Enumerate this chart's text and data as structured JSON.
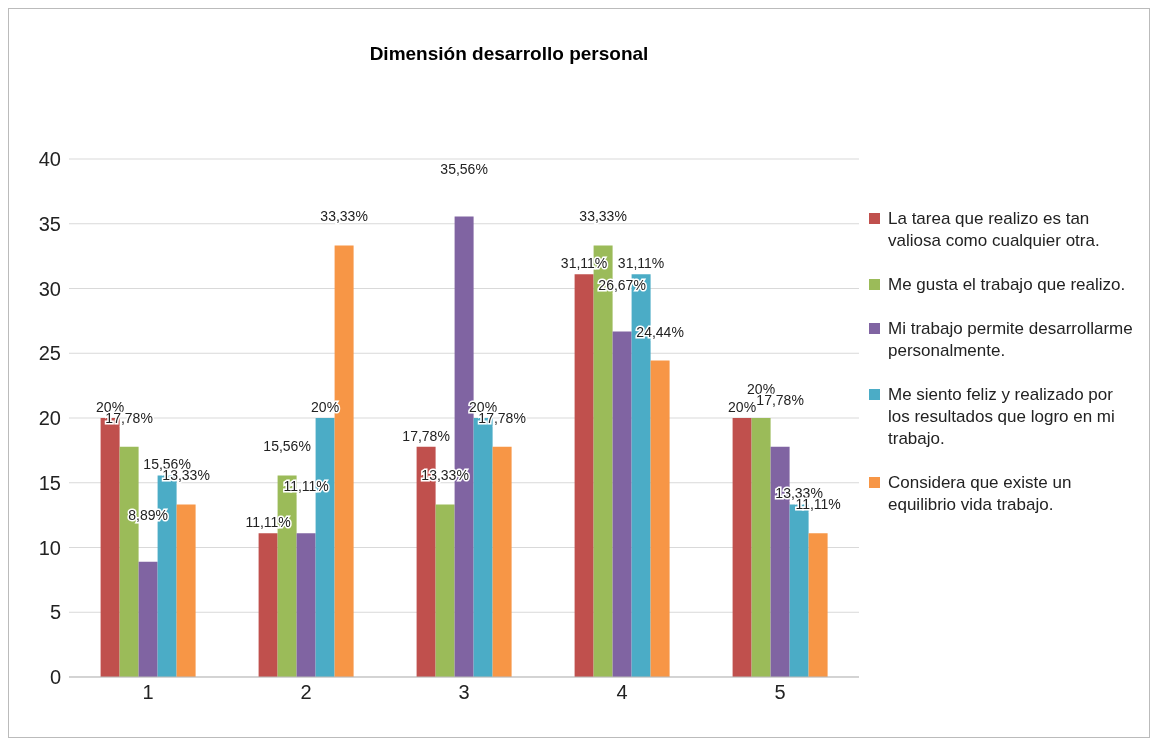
{
  "chart_data": {
    "type": "bar",
    "title": "Dimensión desarrollo personal",
    "categories": [
      "1",
      "2",
      "3",
      "4",
      "5"
    ],
    "series": [
      {
        "name": "La tarea que realizo es tan valiosa como cualquier otra.",
        "color": "#c0504d",
        "values": [
          20,
          11.11,
          17.78,
          31.11,
          20
        ],
        "value_labels": [
          "20%",
          "11,11%",
          "17,78%",
          "31,11%",
          "20%"
        ]
      },
      {
        "name": "Me gusta el trabajo que realizo.",
        "color": "#9bbb59",
        "values": [
          17.78,
          15.56,
          13.33,
          33.33,
          20
        ],
        "value_labels": [
          "17,78%",
          "15,56%",
          "13,33%",
          "33,33%",
          "20%"
        ]
      },
      {
        "name": "Mi trabajo permite desarrollarme personalmente.",
        "color": "#8064a2",
        "values": [
          8.89,
          11.11,
          35.56,
          26.67,
          17.78
        ],
        "value_labels": [
          "8,89%",
          "11,11%",
          "35,56%",
          "26,67%",
          "17,78%"
        ]
      },
      {
        "name": "Me siento feliz y realizado por los resultados que logro en mi trabajo.",
        "color": "#4bacc6",
        "values": [
          15.56,
          20,
          20,
          31.11,
          13.33
        ],
        "value_labels": [
          "15,56%",
          "20%",
          "20%",
          "31,11%",
          "13,33%"
        ]
      },
      {
        "name": "Considera que existe un equilibrio vida trabajo.",
        "color": "#f79646",
        "values": [
          13.33,
          33.33,
          17.78,
          24.44,
          11.11
        ],
        "value_labels": [
          "13,33%",
          "33,33%",
          "17,78%",
          "24,44%",
          "11,11%"
        ]
      }
    ],
    "ylim": [
      0,
      40
    ],
    "yticks": [
      0,
      5,
      10,
      15,
      20,
      25,
      30,
      35,
      40
    ],
    "grid": "y",
    "legend": "right"
  }
}
